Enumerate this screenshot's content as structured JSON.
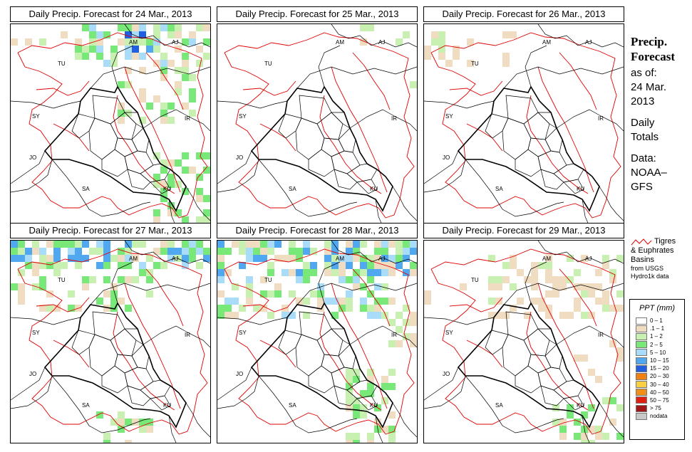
{
  "panels": [
    {
      "title": "Daily Precip. Forecast for  24 Mar., 2013",
      "pattern": "heavy_north"
    },
    {
      "title": "Daily Precip. Forecast for  25 Mar., 2013",
      "pattern": "dry"
    },
    {
      "title": "Daily Precip. Forecast for  26 Mar., 2013",
      "pattern": "light_nw"
    },
    {
      "title": "Daily Precip. Forecast for  27 Mar., 2013",
      "pattern": "wet_north"
    },
    {
      "title": "Daily Precip. Forecast for  28 Mar., 2013",
      "pattern": "wet_north_south"
    },
    {
      "title": "Daily Precip. Forecast for  29 Mar., 2013",
      "pattern": "light_scatter"
    }
  ],
  "map_labels": {
    "am": "AM",
    "aj": "AJ",
    "tu": "TU",
    "sy": "SY",
    "ir": "IR",
    "jo": "JO",
    "sa": "SA",
    "ku": "KU"
  },
  "sidebar": {
    "title_line1": "Precip.",
    "title_line2": "Forecast",
    "asof": "as of:",
    "date1": "24 Mar.",
    "date2": "2013",
    "daily1": "Daily",
    "daily2": "Totals",
    "data1": "Data:",
    "data2": "NOAA–",
    "data3": "GFS"
  },
  "basins": {
    "line1": "Tigres",
    "line2": "& Euphrates",
    "line3": "Basins",
    "line4": "from USGS",
    "line5": "Hydro1k data"
  },
  "legend": {
    "title": "PPT (mm)",
    "items": [
      {
        "label": "0 – 1",
        "color": "#ffffff"
      },
      {
        "label": ".1 – 1",
        "color": "#f0dcc0"
      },
      {
        "label": "1 – 2",
        "color": "#c8f0b0"
      },
      {
        "label": "2 – 5",
        "color": "#78e878"
      },
      {
        "label": "5 – 10",
        "color": "#a8dcf8"
      },
      {
        "label": "10 – 15",
        "color": "#50a8f0"
      },
      {
        "label": "15 – 20",
        "color": "#2060e0"
      },
      {
        "label": "20 – 30",
        "color": "#f08010"
      },
      {
        "label": "30 – 40",
        "color": "#f8d040"
      },
      {
        "label": "40 – 50",
        "color": "#f09018"
      },
      {
        "label": "50 – 75",
        "color": "#e02010"
      },
      {
        "label": "> 75",
        "color": "#a01818"
      },
      {
        "label": "nodata",
        "color": "#c8c8c8"
      }
    ]
  },
  "colors": {
    "basin": "#e00000",
    "border": "#000000",
    "tan": "#f0dcc0",
    "lightgreen": "#c8f0b0",
    "green": "#78e878",
    "lightblue": "#a8dcf8",
    "blue": "#50a8f0",
    "darkblue": "#2060e0"
  }
}
